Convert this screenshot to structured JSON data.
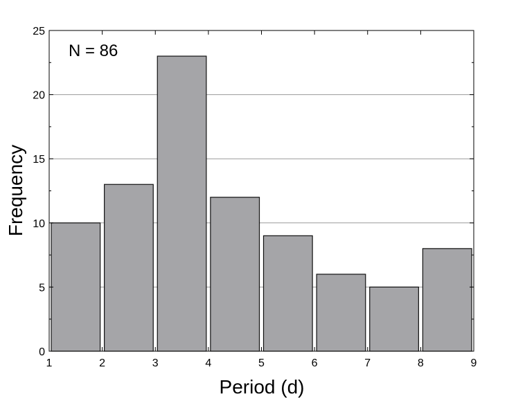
{
  "chart_data": {
    "type": "bar",
    "title": "",
    "xlabel": "Period (d)",
    "ylabel": "Frequency",
    "annotation": "N = 86",
    "bin_edges": [
      1,
      2,
      3,
      4,
      5,
      6,
      7,
      8,
      9
    ],
    "categories": [
      "1-2",
      "2-3",
      "3-4",
      "4-5",
      "5-6",
      "6-7",
      "7-8",
      "8-9"
    ],
    "values": [
      10,
      13,
      23,
      12,
      9,
      6,
      5,
      8
    ],
    "xlim": [
      1,
      9
    ],
    "ylim": [
      0,
      25
    ],
    "x_ticks": [
      "1",
      "2",
      "3",
      "4",
      "5",
      "6",
      "7",
      "8",
      "9"
    ],
    "y_ticks": [
      "0",
      "5",
      "10",
      "15",
      "20",
      "25"
    ],
    "grid": "horizontal",
    "legend": "none",
    "colors": {
      "bar_fill": "#a5a5a8",
      "bar_stroke": "#111111",
      "grid": "#9a9a9a",
      "axis": "#000000"
    }
  }
}
